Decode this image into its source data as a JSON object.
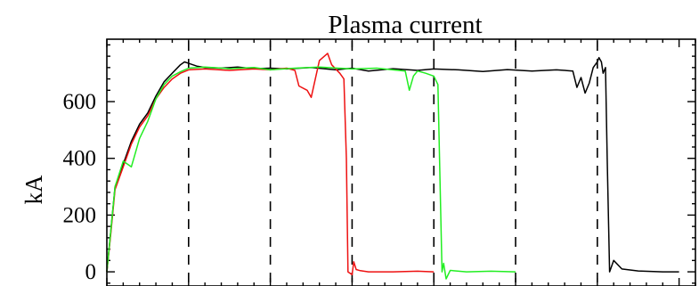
{
  "chart_data": {
    "type": "line",
    "title": "Plasma current",
    "ylabel": "kA",
    "xlabel": "",
    "xlim": [
      0,
      7.2
    ],
    "ylim": [
      -50,
      820
    ],
    "yticks": [
      0,
      200,
      400,
      600
    ],
    "xtick_labels_visible": false,
    "grid": false,
    "legend": "none",
    "vertical_dashed_lines_x": [
      1.0,
      2.0,
      3.0,
      4.0,
      5.0,
      6.0
    ],
    "series": [
      {
        "color": "#000000",
        "x": [
          0,
          0.05,
          0.1,
          0.2,
          0.3,
          0.4,
          0.5,
          0.6,
          0.7,
          0.8,
          0.9,
          0.95,
          1.0,
          1.1,
          1.2,
          1.4,
          1.6,
          1.8,
          2.0,
          2.2,
          2.5,
          2.8,
          3.0,
          3.2,
          3.5,
          3.8,
          4.0,
          4.3,
          4.6,
          4.9,
          5.2,
          5.5,
          5.7,
          5.75,
          5.8,
          5.85,
          5.9,
          5.95,
          6.0,
          6.02,
          6.05,
          6.07,
          6.1,
          6.12,
          6.15,
          6.2,
          6.3,
          6.5,
          6.8,
          7.0
        ],
        "values": [
          0,
          150,
          300,
          380,
          460,
          520,
          560,
          620,
          670,
          700,
          730,
          740,
          735,
          725,
          720,
          718,
          722,
          716,
          718,
          715,
          720,
          712,
          718,
          708,
          716,
          710,
          715,
          712,
          706,
          713,
          708,
          712,
          708,
          650,
          685,
          630,
          665,
          720,
          740,
          755,
          740,
          700,
          720,
          400,
          0,
          40,
          10,
          3,
          0,
          0
        ]
      },
      {
        "color": "#ee1111",
        "x": [
          0,
          0.05,
          0.1,
          0.2,
          0.3,
          0.4,
          0.5,
          0.6,
          0.7,
          0.8,
          0.9,
          1.0,
          1.2,
          1.5,
          1.8,
          2.0,
          2.2,
          2.3,
          2.35,
          2.45,
          2.5,
          2.6,
          2.7,
          2.75,
          2.85,
          2.9,
          2.93,
          2.95,
          3.0,
          3.02,
          3.05,
          3.1,
          3.2,
          3.5,
          3.8,
          4.0
        ],
        "values": [
          0,
          140,
          290,
          370,
          450,
          510,
          550,
          610,
          650,
          680,
          700,
          712,
          715,
          710,
          715,
          712,
          718,
          710,
          655,
          640,
          615,
          745,
          770,
          730,
          700,
          680,
          400,
          0,
          -10,
          35,
          8,
          4,
          0,
          0,
          2,
          0
        ]
      },
      {
        "color": "#22ee22",
        "x": [
          0,
          0.05,
          0.1,
          0.2,
          0.3,
          0.35,
          0.4,
          0.5,
          0.6,
          0.7,
          0.8,
          0.9,
          1.0,
          1.2,
          1.5,
          1.8,
          2.0,
          2.3,
          2.6,
          3.0,
          3.3,
          3.5,
          3.65,
          3.7,
          3.75,
          3.8,
          3.9,
          4.0,
          4.05,
          4.1,
          4.12,
          4.15,
          4.2,
          4.4,
          4.7,
          5.0
        ],
        "values": [
          0,
          150,
          300,
          390,
          370,
          420,
          470,
          530,
          610,
          660,
          690,
          705,
          718,
          722,
          716,
          720,
          712,
          718,
          722,
          715,
          718,
          712,
          708,
          640,
          690,
          708,
          700,
          690,
          660,
          0,
          30,
          -25,
          5,
          0,
          2,
          0
        ]
      }
    ]
  }
}
